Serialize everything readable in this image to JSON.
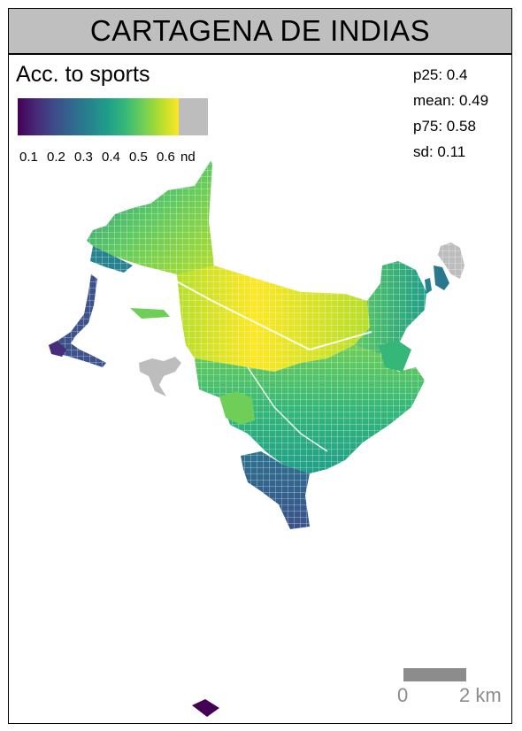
{
  "title": "CARTAGENA DE INDIAS",
  "legend": {
    "title": "Acc. to sports",
    "ticks": [
      "0.1",
      "0.2",
      "0.3",
      "0.4",
      "0.5",
      "0.6",
      "nd"
    ],
    "colors": [
      "#440154",
      "#482878",
      "#3e4a89",
      "#31688e",
      "#26828e",
      "#1f9e89",
      "#35b779",
      "#6ece58",
      "#b5de2b",
      "#fde725"
    ],
    "nd_color": "#bdbdbd"
  },
  "stats": {
    "p25": "p25: 0.4",
    "mean": "mean: 0.49",
    "p75": "p75: 0.58",
    "sd": "sd: 0.11"
  },
  "scale": {
    "zero": "0",
    "max": "2 km"
  }
}
